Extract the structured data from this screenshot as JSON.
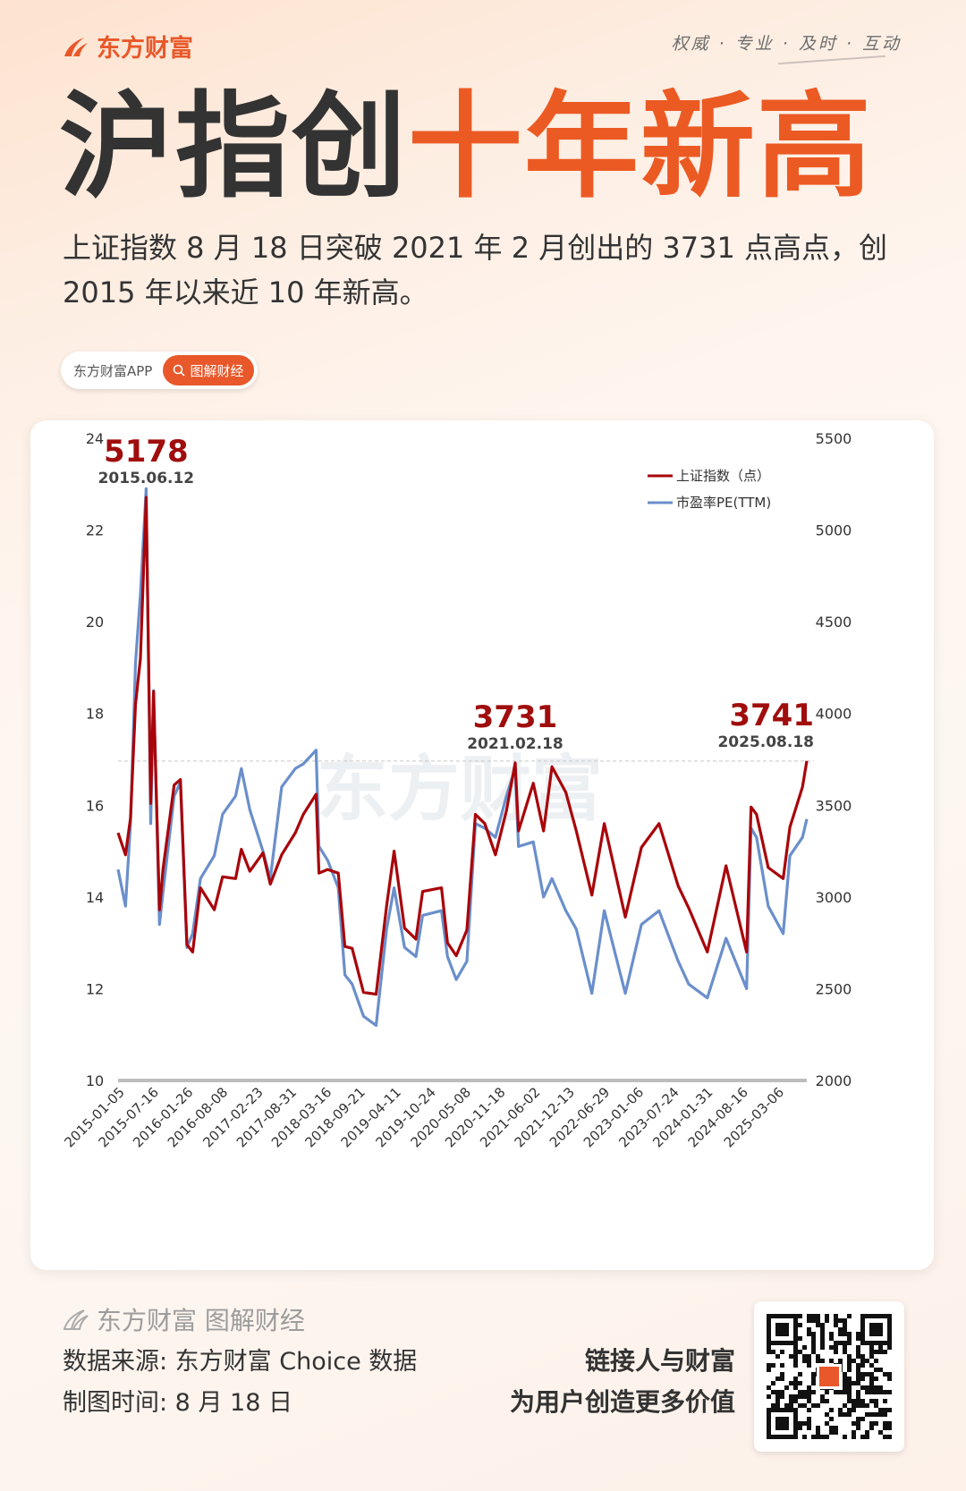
{
  "header": {
    "brand": "东方财富",
    "tagline": "权威 · 专业 · 及时 · 互动",
    "headline_part1": "沪指创",
    "headline_part2": "十年新高",
    "lead": "上证指数 8 月 18 日突破 2021 年 2 月创出的 3731 点高点，创 2015 年以来近 10 年新高。"
  },
  "pill": {
    "app_label": "东方财富APP",
    "search_label": "图解财经",
    "search_icon": "search-icon"
  },
  "colors": {
    "accent": "#e8582a",
    "index_line": "#a8050a",
    "pe_line": "#6a8fcb",
    "annotation": "#a00d0d"
  },
  "chart_data": {
    "type": "line",
    "watermark": "东方财富",
    "x_labels": [
      "2015-01-05",
      "2015-07-16",
      "2016-01-26",
      "2016-08-08",
      "2017-02-23",
      "2017-08-31",
      "2018-03-16",
      "2018-09-21",
      "2019-04-11",
      "2019-10-24",
      "2020-05-08",
      "2020-11-18",
      "2021-06-02",
      "2021-12-13",
      "2022-06-29",
      "2023-01-06",
      "2023-07-24",
      "2024-01-31",
      "2024-08-16",
      "2025-03-06"
    ],
    "x_range": [
      "2015-01-05",
      "2025-08-18"
    ],
    "y_left": {
      "ticks": [
        10,
        12,
        14,
        16,
        18,
        20,
        22,
        24
      ],
      "range": [
        10,
        24
      ]
    },
    "y_right": {
      "ticks": [
        2000,
        2500,
        3000,
        3500,
        4000,
        4500,
        5000,
        5500
      ],
      "range": [
        2000,
        5500
      ]
    },
    "legend": {
      "position": "top-right",
      "items": [
        "上证指数（点）",
        "市盈率PE(TTM)"
      ]
    },
    "reference_line": 3741,
    "annotations": [
      {
        "value": "5178",
        "date": "2015.06.12"
      },
      {
        "value": "3731",
        "date": "2021.02.18"
      },
      {
        "value": "3741",
        "date": "2025.08.18"
      }
    ],
    "series": [
      {
        "name": "上证指数（点）",
        "axis": "right",
        "dates": [
          "2015-01-05",
          "2015-02-16",
          "2015-03-16",
          "2015-04-13",
          "2015-05-11",
          "2015-06-12",
          "2015-07-08",
          "2015-07-24",
          "2015-08-26",
          "2015-09-15",
          "2015-11-17",
          "2015-12-22",
          "2016-01-28",
          "2016-02-29",
          "2016-04-13",
          "2016-06-30",
          "2016-08-15",
          "2016-10-28",
          "2016-11-29",
          "2017-01-16",
          "2017-03-31",
          "2017-05-11",
          "2017-07-14",
          "2017-09-29",
          "2017-11-13",
          "2018-01-24",
          "2018-02-09",
          "2018-03-30",
          "2018-05-29",
          "2018-07-05",
          "2018-08-15",
          "2018-10-18",
          "2018-12-28",
          "2019-02-25",
          "2019-04-08",
          "2019-06-06",
          "2019-08-09",
          "2019-09-16",
          "2019-12-31",
          "2020-02-03",
          "2020-03-23",
          "2020-05-22",
          "2020-07-09",
          "2020-08-31",
          "2020-10-30",
          "2020-12-31",
          "2021-02-18",
          "2021-03-09",
          "2021-05-31",
          "2021-07-28",
          "2021-09-13",
          "2021-11-30",
          "2022-01-28",
          "2022-04-26",
          "2022-07-05",
          "2022-10-31",
          "2023-01-30",
          "2023-05-09",
          "2023-08-25",
          "2023-10-23",
          "2024-02-05",
          "2024-05-20",
          "2024-09-13",
          "2024-10-08",
          "2024-11-08",
          "2025-01-13",
          "2025-04-07",
          "2025-05-15",
          "2025-07-25",
          "2025-08-18"
        ],
        "values": [
          3350,
          3230,
          3430,
          4050,
          4300,
          5178,
          3510,
          4120,
          2930,
          3150,
          3610,
          3640,
          2740,
          2700,
          3050,
          2930,
          3110,
          3100,
          3260,
          3140,
          3240,
          3070,
          3230,
          3350,
          3450,
          3560,
          3130,
          3150,
          3130,
          2730,
          2720,
          2480,
          2470,
          2950,
          3250,
          2830,
          2770,
          3030,
          3050,
          2750,
          2680,
          2820,
          3450,
          3400,
          3230,
          3470,
          3731,
          3360,
          3620,
          3360,
          3710,
          3570,
          3360,
          3010,
          3400,
          2890,
          3270,
          3400,
          3060,
          2940,
          2700,
          3170,
          2700,
          3490,
          3450,
          3160,
          3100,
          3380,
          3600,
          3741
        ]
      },
      {
        "name": "市盈率PE(TTM)",
        "axis": "left",
        "dates": [
          "2015-01-05",
          "2015-02-16",
          "2015-03-16",
          "2015-04-13",
          "2015-05-11",
          "2015-06-12",
          "2015-07-08",
          "2015-07-24",
          "2015-08-26",
          "2015-09-15",
          "2015-11-17",
          "2015-12-22",
          "2016-01-28",
          "2016-02-29",
          "2016-04-13",
          "2016-06-30",
          "2016-08-15",
          "2016-10-28",
          "2016-11-29",
          "2017-01-16",
          "2017-03-31",
          "2017-05-11",
          "2017-07-14",
          "2017-09-29",
          "2017-11-13",
          "2018-01-24",
          "2018-02-09",
          "2018-03-30",
          "2018-05-29",
          "2018-07-05",
          "2018-08-15",
          "2018-10-18",
          "2018-12-28",
          "2019-02-25",
          "2019-04-08",
          "2019-06-06",
          "2019-08-09",
          "2019-09-16",
          "2019-12-31",
          "2020-02-03",
          "2020-03-23",
          "2020-05-22",
          "2020-07-09",
          "2020-08-31",
          "2020-10-30",
          "2020-12-31",
          "2021-02-18",
          "2021-03-09",
          "2021-05-31",
          "2021-07-28",
          "2021-09-13",
          "2021-11-30",
          "2022-01-28",
          "2022-04-26",
          "2022-07-05",
          "2022-10-31",
          "2023-01-30",
          "2023-05-09",
          "2023-08-25",
          "2023-10-23",
          "2024-02-05",
          "2024-05-20",
          "2024-09-13",
          "2024-10-08",
          "2024-11-08",
          "2025-01-13",
          "2025-04-07",
          "2025-05-15",
          "2025-07-25",
          "2025-08-18"
        ],
        "values": [
          14.6,
          13.8,
          15.6,
          19.1,
          20.6,
          22.9,
          15.6,
          18.5,
          13.4,
          14.1,
          16.2,
          16.5,
          12.9,
          13.2,
          14.4,
          14.9,
          15.8,
          16.2,
          16.8,
          15.9,
          15.0,
          14.4,
          16.4,
          16.8,
          16.9,
          17.2,
          15.1,
          14.8,
          14.2,
          12.3,
          12.1,
          11.4,
          11.2,
          13.3,
          14.2,
          12.9,
          12.7,
          13.6,
          13.7,
          12.7,
          12.2,
          12.6,
          15.6,
          15.5,
          15.3,
          16.2,
          16.8,
          15.1,
          15.2,
          14.0,
          14.4,
          13.7,
          13.3,
          11.9,
          13.7,
          11.9,
          13.4,
          13.7,
          12.6,
          12.1,
          11.8,
          13.1,
          12.0,
          15.5,
          15.3,
          13.8,
          13.2,
          14.9,
          15.3,
          15.7
        ]
      }
    ]
  },
  "footer": {
    "brand": "东方财富 图解财经",
    "source": "数据来源: 东方财富 Choice 数据",
    "date": "制图时间: 8 月 18 日",
    "slogan_1": "链接人与财富",
    "slogan_2": "为用户创造更多价值",
    "qr_icon": "qr-code-icon"
  }
}
